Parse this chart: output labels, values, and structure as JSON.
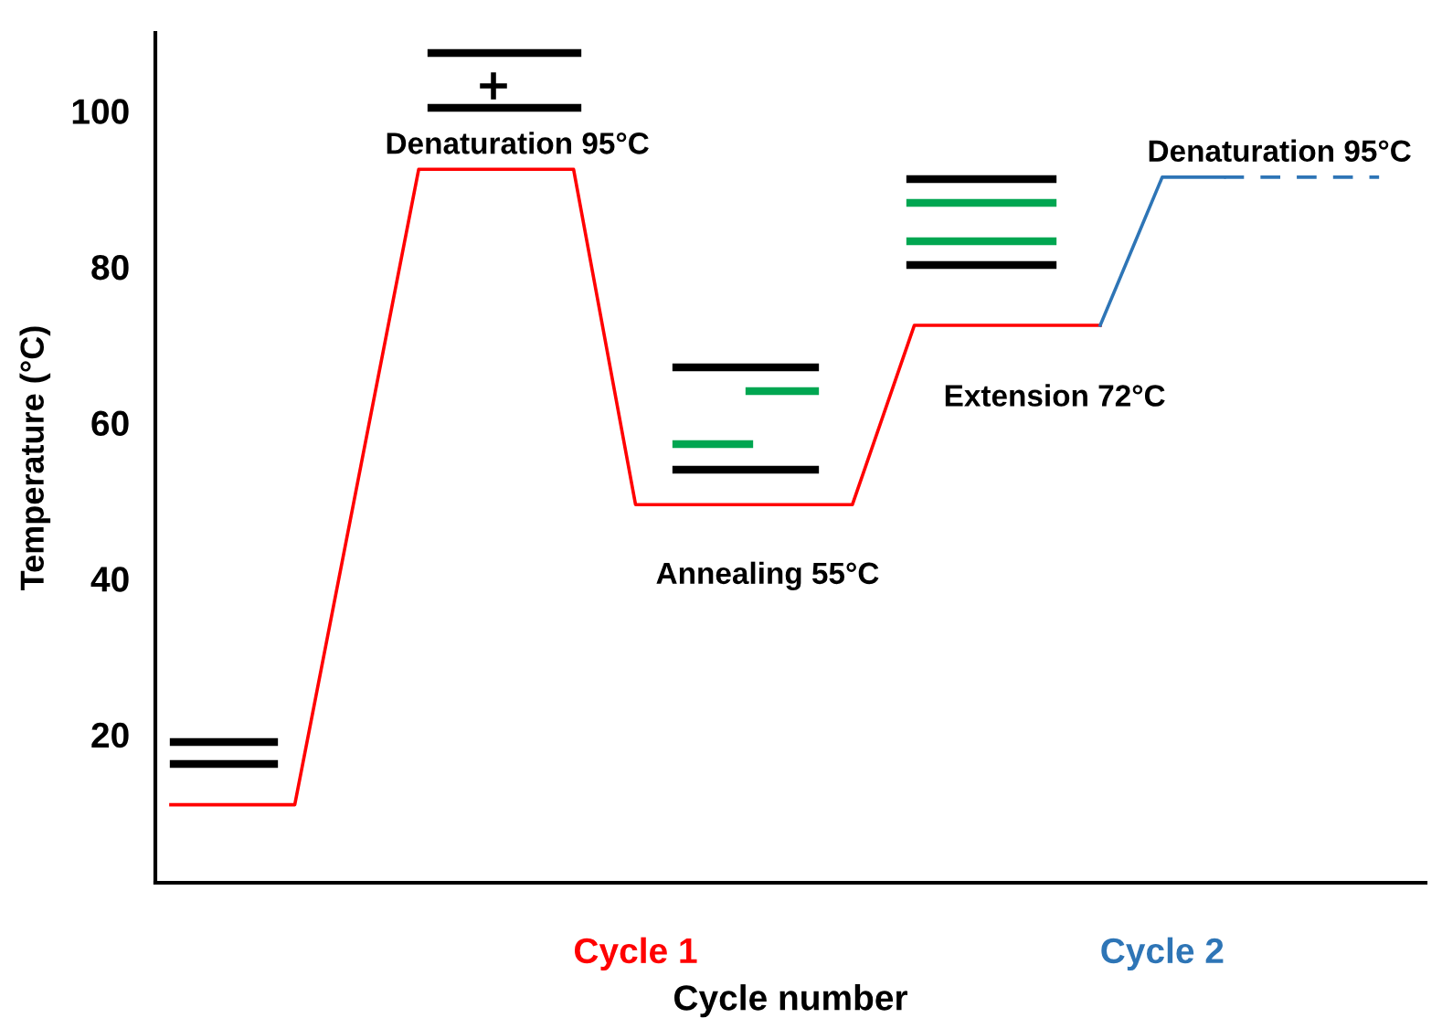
{
  "chart_data": {
    "type": "line",
    "xlabel": "Cycle number",
    "ylabel": "Temperature (°C)",
    "categories": [
      null,
      null,
      null,
      null,
      null,
      null,
      null,
      null,
      null,
      null,
      null,
      null,
      null,
      null,
      null,
      null,
      null,
      null,
      null,
      null,
      null,
      null,
      null,
      null,
      null,
      null,
      null,
      null,
      null,
      null,
      null,
      null,
      null,
      null,
      null,
      null,
      null,
      null,
      null,
      null,
      null
    ],
    "ylim": [
      1,
      110
    ],
    "yticks": [
      20,
      40,
      60,
      80,
      100
    ],
    "tick_labels": "y",
    "series": [
      {
        "name": "Cycle 1",
        "color": "#ff0000",
        "line_style": "solid",
        "values": [
          11,
          null,
          null,
          null,
          11,
          null,
          null,
          null,
          92.5,
          null,
          null,
          null,
          null,
          92.5,
          null,
          49.5,
          null,
          null,
          null,
          null,
          null,
          null,
          49.5,
          null,
          72.5,
          null,
          null,
          null,
          null,
          null,
          72.5,
          null,
          null,
          null,
          null,
          null,
          null,
          null,
          null,
          null,
          null
        ]
      },
      {
        "name": "Cycle 2",
        "color": "#2e75b6",
        "line_style": "solid",
        "values": [
          null,
          null,
          null,
          null,
          null,
          null,
          null,
          null,
          null,
          null,
          null,
          null,
          null,
          null,
          null,
          null,
          null,
          null,
          null,
          null,
          null,
          null,
          null,
          null,
          null,
          null,
          null,
          null,
          null,
          null,
          72.5,
          null,
          91.5,
          null,
          91.5,
          null,
          null,
          null,
          null,
          null,
          null
        ]
      },
      {
        "color": "#2e75b6",
        "line_style": "dashed",
        "values": [
          null,
          null,
          null,
          null,
          null,
          null,
          null,
          null,
          null,
          null,
          null,
          null,
          null,
          null,
          null,
          null,
          null,
          null,
          null,
          null,
          null,
          null,
          null,
          null,
          null,
          null,
          null,
          null,
          null,
          null,
          null,
          null,
          null,
          null,
          91.5,
          null,
          null,
          null,
          null,
          91.5,
          null
        ]
      }
    ],
    "annotations": [
      "Denaturation 95°C",
      "Annealing 55°C",
      "Extension 72°C",
      "Denaturation 95°C"
    ]
  }
}
